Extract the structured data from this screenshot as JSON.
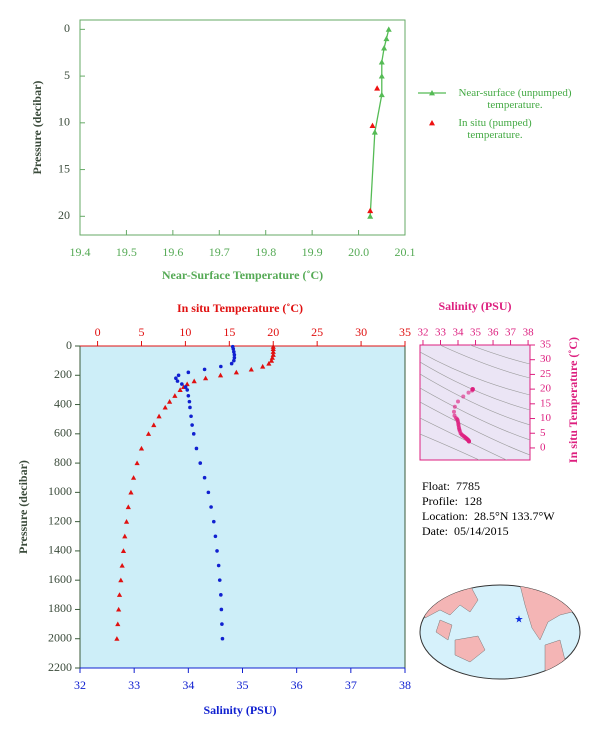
{
  "chart_data": [
    {
      "type": "line",
      "x_label": "Near-Surface Temperature (˚C)",
      "y_label": "Pressure (decibar)",
      "xlim": [
        19.4,
        20.1
      ],
      "xticks": [
        19.4,
        19.5,
        19.6,
        19.7,
        19.8,
        19.9,
        {
          "value": 20,
          "label": "20.0"
        },
        20.1
      ],
      "ylim": [
        -1,
        22
      ],
      "yticks": [
        0,
        5,
        10,
        15,
        20
      ],
      "y_inverted": true,
      "legend": "right",
      "series": [
        {
          "name": "Near-surface (unpumped) temperature.",
          "color": "#55bb55",
          "line": true,
          "x": [
            20.065,
            20.06,
            20.055,
            20.05,
            20.05,
            20.05,
            20.035,
            20.025
          ],
          "y": [
            0,
            1,
            2,
            3.5,
            5,
            7,
            11,
            20
          ]
        },
        {
          "name": "In situ (pumped) temperature.",
          "color": "#ee1111",
          "line": false,
          "x": [
            20.04,
            20.03,
            20.025
          ],
          "y": [
            6.3,
            10.3,
            19.4
          ]
        }
      ]
    },
    {
      "type": "profile",
      "y_label": "Pressure (decibar)",
      "ylim": [
        0,
        2200
      ],
      "yticks": [
        0,
        200,
        400,
        600,
        800,
        1000,
        1200,
        1400,
        1600,
        1800,
        2000,
        2200
      ],
      "y_inverted": true,
      "background": "#cdeef8",
      "pressure": [
        5,
        20,
        40,
        60,
        80,
        100,
        120,
        140,
        160,
        180,
        200,
        220,
        240,
        260,
        280,
        300,
        340,
        380,
        420,
        480,
        540,
        600,
        700,
        800,
        900,
        1000,
        1100,
        1200,
        1300,
        1400,
        1500,
        1600,
        1700,
        1800,
        1900,
        2000
      ],
      "temperature": {
        "label": "In situ Temperature (˚C)",
        "color": "#e01010",
        "lim": [
          -2,
          35
        ],
        "ticks": [
          0,
          5,
          10,
          15,
          20,
          25,
          30,
          35
        ],
        "values": [
          20.0,
          20.0,
          20.0,
          20.0,
          19.9,
          19.8,
          19.5,
          18.8,
          17.5,
          15.8,
          14.0,
          12.3,
          11.0,
          10.2,
          9.8,
          9.4,
          8.8,
          8.2,
          7.7,
          7.0,
          6.4,
          5.8,
          5.0,
          4.5,
          4.1,
          3.8,
          3.5,
          3.3,
          3.1,
          2.95,
          2.8,
          2.65,
          2.5,
          2.4,
          2.3,
          2.2
        ]
      },
      "salinity": {
        "label": "Salinity (PSU)",
        "color": "#1020d0",
        "lim": [
          32,
          38
        ],
        "ticks": [
          32,
          33,
          34,
          35,
          36,
          37,
          38
        ],
        "values": [
          34.82,
          34.83,
          34.84,
          34.85,
          34.85,
          34.84,
          34.8,
          34.6,
          34.3,
          34.0,
          33.82,
          33.77,
          33.8,
          33.88,
          33.95,
          33.98,
          34.0,
          34.02,
          34.03,
          34.05,
          34.07,
          34.1,
          34.15,
          34.22,
          34.3,
          34.37,
          34.42,
          34.47,
          34.5,
          34.53,
          34.56,
          34.58,
          34.6,
          34.61,
          34.62,
          34.63
        ]
      }
    },
    {
      "type": "ts",
      "x_label": "Salinity (PSU)",
      "y_label": "In situ Temperature (˚C)",
      "color": "#dd1f7f",
      "xlim": [
        31.83,
        38.11
      ],
      "xticks": [
        32,
        33,
        34,
        35,
        36,
        37,
        38
      ],
      "ylim": [
        -4.1,
        35
      ],
      "yticks": [
        0,
        5,
        10,
        15,
        20,
        25,
        30,
        35
      ],
      "background": "#ebe5f5"
    }
  ],
  "info": [
    {
      "label": "Float:",
      "value": "7785"
    },
    {
      "label": "Profile:",
      "value": "128"
    },
    {
      "label": "Location:",
      "value": "28.5°N  133.7°W"
    },
    {
      "label": "Date:",
      "value": "05/14/2015"
    }
  ]
}
